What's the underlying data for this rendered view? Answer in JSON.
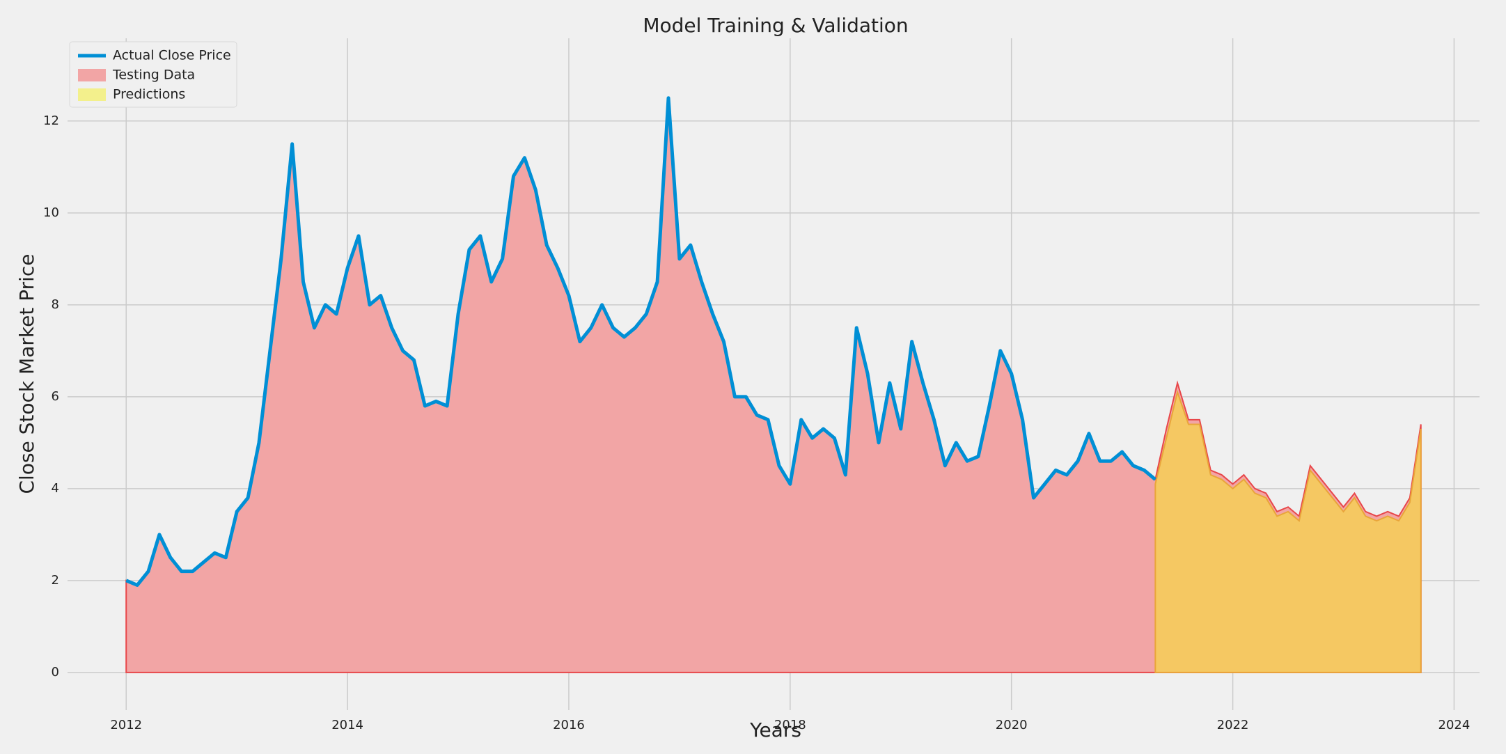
{
  "chart_data": {
    "type": "area",
    "title": "Model Training & Validation",
    "x_label": "Years",
    "y_label": "Close Stock Market Price",
    "xlim": [
      2011.47,
      2024.23
    ],
    "xticks": [
      2012,
      2014,
      2016,
      2018,
      2020,
      2022,
      2024
    ],
    "ylim": [
      -0.82,
      13.8
    ],
    "yticks": [
      0,
      2,
      4,
      6,
      8,
      10,
      12
    ],
    "grid": true,
    "legend": "upper left",
    "x": [
      2012,
      2012.1,
      2012.2,
      2012.3,
      2012.4,
      2012.5,
      2012.6,
      2012.7,
      2012.8,
      2012.9,
      2013,
      2013.1,
      2013.2,
      2013.3,
      2013.4,
      2013.5,
      2013.6,
      2013.7,
      2013.8,
      2013.9,
      2014,
      2014.1,
      2014.2,
      2014.3,
      2014.4,
      2014.5,
      2014.6,
      2014.7,
      2014.8,
      2014.9,
      2015,
      2015.1,
      2015.2,
      2015.3,
      2015.4,
      2015.5,
      2015.6,
      2015.7,
      2015.8,
      2015.9,
      2016,
      2016.1,
      2016.2,
      2016.3,
      2016.4,
      2016.5,
      2016.6,
      2016.7,
      2016.8,
      2016.9,
      2017,
      2017.1,
      2017.2,
      2017.3,
      2017.4,
      2017.5,
      2017.6,
      2017.7,
      2017.8,
      2017.9,
      2018,
      2018.1,
      2018.2,
      2018.3,
      2018.4,
      2018.5,
      2018.6,
      2018.7,
      2018.8,
      2018.9,
      2019,
      2019.1,
      2019.2,
      2019.3,
      2019.4,
      2019.5,
      2019.6,
      2019.7,
      2019.8,
      2019.9,
      2020,
      2020.1,
      2020.2,
      2020.3,
      2020.4,
      2020.5,
      2020.6,
      2020.7,
      2020.8,
      2020.9,
      2021,
      2021.1,
      2021.2,
      2021.3,
      2021.4,
      2021.5,
      2021.6,
      2021.7,
      2021.8,
      2021.9,
      2022,
      2022.1,
      2022.2,
      2022.3,
      2022.4,
      2022.5,
      2022.6,
      2022.7,
      2022.8,
      2022.9,
      2023,
      2023.1,
      2023.2,
      2023.3,
      2023.4,
      2023.5,
      2023.6,
      2023.7
    ],
    "series": [
      {
        "name": "Testing Data",
        "kind": "area",
        "color": "#f2a5a5",
        "edge": "#e8474a",
        "values": [
          2.0,
          1.9,
          2.2,
          3.0,
          2.5,
          2.2,
          2.2,
          2.4,
          2.6,
          2.5,
          3.5,
          3.8,
          5.0,
          7.0,
          9.0,
          11.5,
          8.5,
          7.5,
          8.0,
          7.8,
          8.8,
          9.5,
          8.0,
          8.2,
          7.5,
          7.0,
          6.8,
          5.8,
          5.9,
          5.8,
          7.8,
          9.2,
          9.5,
          8.5,
          9.0,
          10.8,
          11.2,
          10.5,
          9.3,
          8.8,
          8.2,
          7.2,
          7.5,
          8.0,
          7.5,
          7.3,
          7.5,
          7.8,
          8.5,
          12.5,
          9.0,
          9.3,
          8.5,
          7.8,
          7.2,
          6.0,
          6.0,
          5.6,
          5.5,
          4.5,
          4.1,
          5.5,
          5.1,
          5.3,
          5.1,
          4.3,
          7.5,
          6.5,
          5.0,
          6.3,
          5.3,
          7.2,
          6.3,
          5.5,
          4.5,
          5.0,
          4.6,
          4.7,
          5.8,
          7.0,
          6.5,
          5.5,
          3.8,
          4.1,
          4.4,
          4.3,
          4.6,
          5.2,
          4.6,
          4.6,
          4.8,
          4.5,
          4.4,
          4.2,
          5.3,
          6.3,
          5.5,
          5.5,
          4.4,
          4.3,
          4.1,
          4.3,
          4.0,
          3.9,
          3.5,
          3.6,
          3.4,
          4.5,
          4.2,
          3.9,
          3.6,
          3.9,
          3.5,
          3.4,
          3.5,
          3.4,
          3.8,
          5.4
        ]
      },
      {
        "name": "Predictions",
        "kind": "area",
        "color": "#f5c862",
        "legend_color": "#f3f08c",
        "edge": "#e9a53a",
        "values": [
          null,
          null,
          null,
          null,
          null,
          null,
          null,
          null,
          null,
          null,
          null,
          null,
          null,
          null,
          null,
          null,
          null,
          null,
          null,
          null,
          null,
          null,
          null,
          null,
          null,
          null,
          null,
          null,
          null,
          null,
          null,
          null,
          null,
          null,
          null,
          null,
          null,
          null,
          null,
          null,
          null,
          null,
          null,
          null,
          null,
          null,
          null,
          null,
          null,
          null,
          null,
          null,
          null,
          null,
          null,
          null,
          null,
          null,
          null,
          null,
          null,
          null,
          null,
          null,
          null,
          null,
          null,
          null,
          null,
          null,
          null,
          null,
          null,
          null,
          null,
          null,
          null,
          null,
          null,
          null,
          null,
          null,
          null,
          null,
          null,
          null,
          null,
          null,
          null,
          null,
          null,
          null,
          null,
          4.1,
          5.1,
          6.1,
          5.4,
          5.4,
          4.3,
          4.2,
          4.0,
          4.2,
          3.9,
          3.8,
          3.4,
          3.5,
          3.3,
          4.4,
          4.1,
          3.8,
          3.5,
          3.8,
          3.4,
          3.3,
          3.4,
          3.3,
          3.7,
          5.3
        ]
      },
      {
        "name": "Actual Close Price",
        "kind": "line",
        "color": "#008fd5",
        "values": [
          2.0,
          1.9,
          2.2,
          3.0,
          2.5,
          2.2,
          2.2,
          2.4,
          2.6,
          2.5,
          3.5,
          3.8,
          5.0,
          7.0,
          9.0,
          11.5,
          8.5,
          7.5,
          8.0,
          7.8,
          8.8,
          9.5,
          8.0,
          8.2,
          7.5,
          7.0,
          6.8,
          5.8,
          5.9,
          5.8,
          7.8,
          9.2,
          9.5,
          8.5,
          9.0,
          10.8,
          11.2,
          10.5,
          9.3,
          8.8,
          8.2,
          7.2,
          7.5,
          8.0,
          7.5,
          7.3,
          7.5,
          7.8,
          8.5,
          12.5,
          9.0,
          9.3,
          8.5,
          7.8,
          7.2,
          6.0,
          6.0,
          5.6,
          5.5,
          4.5,
          4.1,
          5.5,
          5.1,
          5.3,
          5.1,
          4.3,
          7.5,
          6.5,
          5.0,
          6.3,
          5.3,
          7.2,
          6.3,
          5.5,
          4.5,
          5.0,
          4.6,
          4.7,
          5.8,
          7.0,
          6.5,
          5.5,
          3.8,
          4.1,
          4.4,
          4.3,
          4.6,
          5.2,
          4.6,
          4.6,
          4.8,
          4.5,
          4.4,
          4.2,
          null,
          null,
          null,
          null,
          null,
          null,
          null,
          null,
          null,
          null,
          null,
          null,
          null,
          null,
          null,
          null,
          null,
          null,
          null,
          null,
          null,
          null,
          null,
          null
        ]
      }
    ]
  }
}
